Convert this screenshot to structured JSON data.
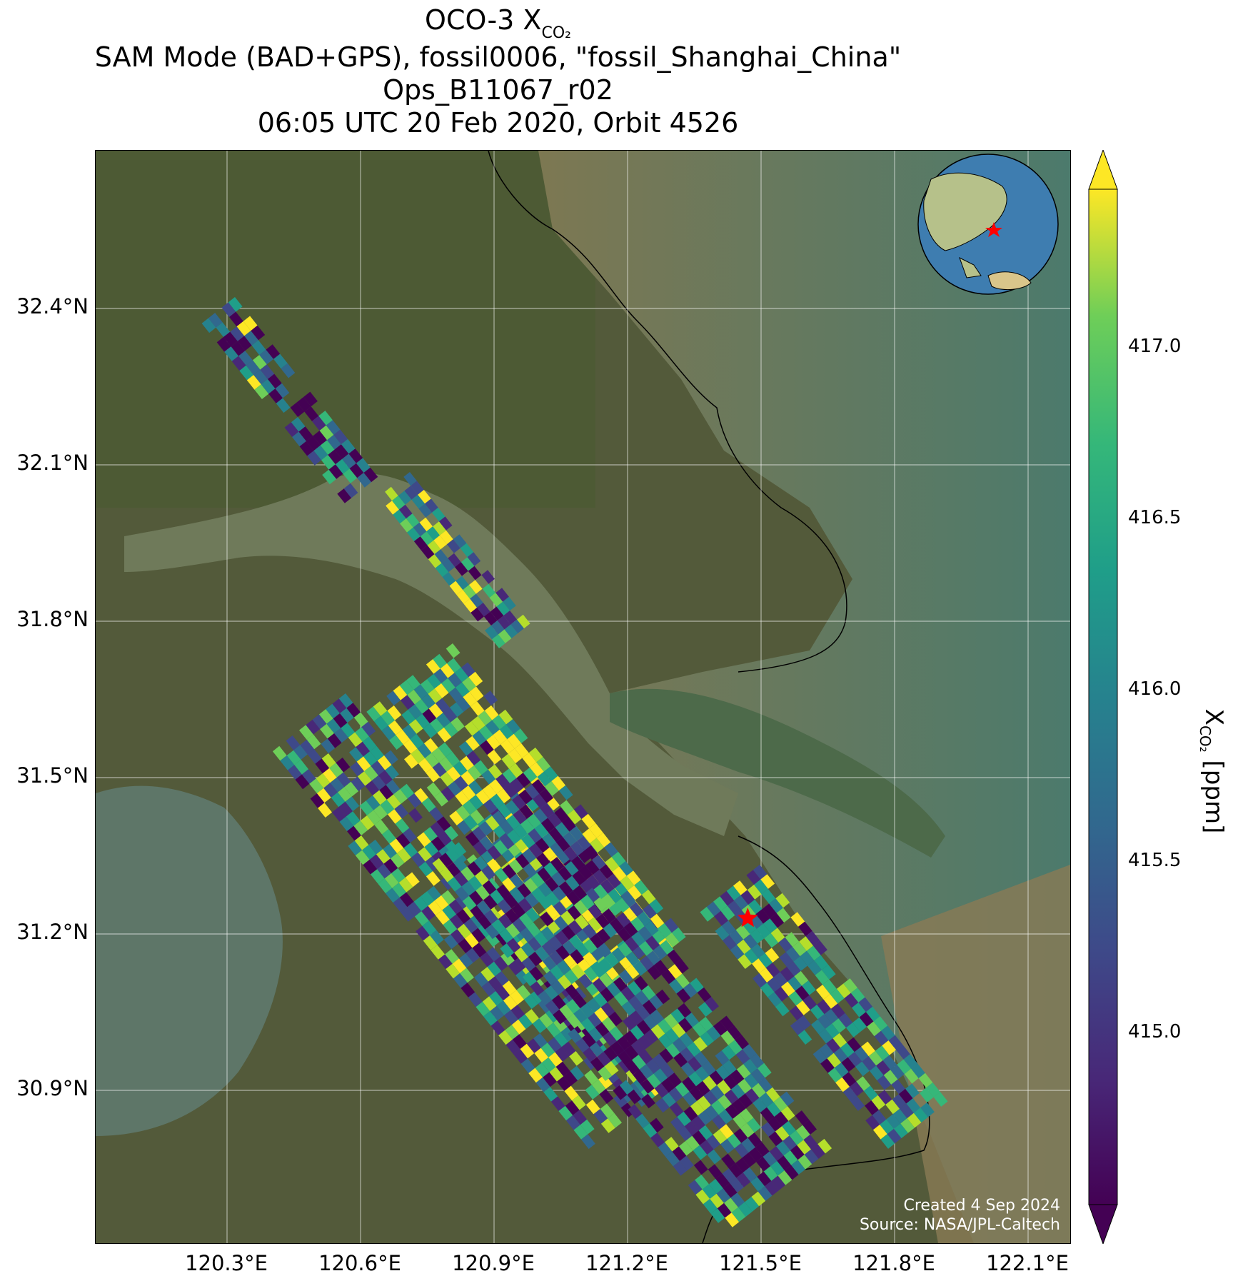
{
  "title": {
    "instrument": "OCO-3 X",
    "instrument_sub": "CO₂",
    "mode_line": "SAM Mode (BAD+GPS), fossil0006, \"fossil_Shanghai_China\"",
    "ops_line": "Ops_B11067_r02",
    "time_line": "06:05 UTC 20 Feb 2020, Orbit 4526"
  },
  "map": {
    "lat_ticks": [
      "32.4°N",
      "32.1°N",
      "31.8°N",
      "31.5°N",
      "31.2°N",
      "30.9°N"
    ],
    "lon_ticks": [
      "120.3°E",
      "120.6°E",
      "120.9°E",
      "121.2°E",
      "121.5°E",
      "121.8°E",
      "122.1°E"
    ],
    "target_marker": {
      "lat": 31.23,
      "lon": 121.47,
      "color": "#ff0000"
    },
    "credit_line1": "Created 4 Sep 2024",
    "credit_line2": "Source: NASA/JPL-Caltech",
    "inset": "globe-locator"
  },
  "colorbar": {
    "label_main": "X",
    "label_sub": "CO₂",
    "label_unit": " [ppm]",
    "ticks": [
      "415.0",
      "415.5",
      "416.0",
      "416.5",
      "417.0"
    ],
    "colormap": "viridis",
    "range": [
      414.55,
      417.4
    ],
    "extend": "both"
  }
}
